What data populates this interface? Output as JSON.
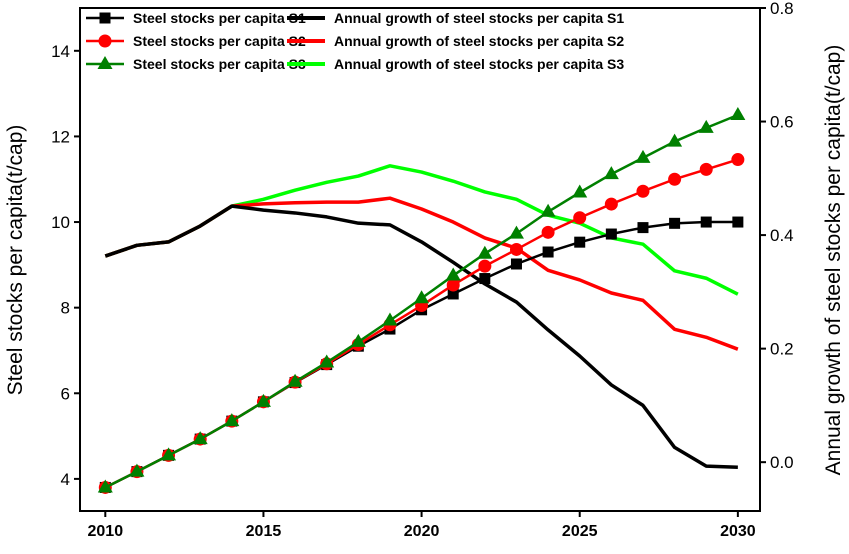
{
  "chart_data": {
    "type": "line",
    "title": "",
    "xlabel": "",
    "ylabel_left": "Steel stocks per capita(t/cap)",
    "ylabel_right": "Annual growth of steel stocks per capita(t/cap)",
    "xlim": [
      2009.2,
      2030.7
    ],
    "ylim_left": [
      3.25,
      15.0
    ],
    "ylim_right": [
      -0.086,
      0.8
    ],
    "x_ticks": [
      2010,
      2015,
      2020,
      2025,
      2030
    ],
    "y_left_ticks": [
      4,
      6,
      8,
      10,
      12,
      14
    ],
    "y_right_ticks": [
      "0.0",
      "0.2",
      "0.4",
      "0.6",
      "0.8"
    ],
    "grid": false,
    "legend_placement": "top",
    "x": [
      2010,
      2011,
      2012,
      2013,
      2014,
      2015,
      2016,
      2017,
      2018,
      2019,
      2020,
      2021,
      2022,
      2023,
      2024,
      2025,
      2026,
      2027,
      2028,
      2029,
      2030
    ],
    "series": [
      {
        "name": "Steel stocks per capita S1",
        "axis": "left",
        "color": "#000000",
        "marker": "square",
        "values": [
          3.8,
          4.17,
          4.55,
          4.93,
          5.35,
          5.8,
          6.25,
          6.67,
          7.1,
          7.5,
          7.95,
          8.32,
          8.68,
          9.02,
          9.3,
          9.53,
          9.72,
          9.87,
          9.97,
          10.0,
          10.0
        ]
      },
      {
        "name": "Steel stocks per capita S2",
        "axis": "left",
        "color": "#ff0000",
        "marker": "circle",
        "values": [
          3.8,
          4.17,
          4.55,
          4.93,
          5.35,
          5.8,
          6.26,
          6.69,
          7.14,
          7.6,
          8.05,
          8.53,
          8.97,
          9.36,
          9.76,
          10.1,
          10.42,
          10.72,
          11.0,
          11.23,
          11.46
        ]
      },
      {
        "name": "Steel stocks per capita S3",
        "axis": "left",
        "color": "#008000",
        "marker": "triangle",
        "values": [
          3.8,
          4.17,
          4.55,
          4.93,
          5.35,
          5.8,
          6.27,
          6.72,
          7.2,
          7.7,
          8.22,
          8.75,
          9.26,
          9.73,
          10.24,
          10.69,
          11.12,
          11.5,
          11.88,
          12.2,
          12.5
        ]
      },
      {
        "name": "Annual growth of steel stocks per capita S1",
        "axis": "right",
        "color": "#000000",
        "marker": "none",
        "values": [
          0.363,
          0.382,
          0.388,
          0.416,
          0.451,
          0.444,
          0.439,
          0.432,
          0.421,
          0.418,
          0.388,
          0.352,
          0.314,
          0.282,
          0.233,
          0.187,
          0.136,
          0.1,
          0.026,
          -0.007,
          -0.009
        ]
      },
      {
        "name": "Annual growth of steel stocks per capita S2",
        "axis": "right",
        "color": "#ff0000",
        "marker": "none",
        "values": [
          0.363,
          0.382,
          0.388,
          0.416,
          0.451,
          0.455,
          0.457,
          0.458,
          0.458,
          0.465,
          0.446,
          0.423,
          0.395,
          0.377,
          0.338,
          0.321,
          0.298,
          0.285,
          0.234,
          0.22,
          0.199
        ]
      },
      {
        "name": "Annual growth of steel stocks per capita S3",
        "axis": "right",
        "color": "#00ff00",
        "marker": "none",
        "values": [
          0.363,
          0.382,
          0.388,
          0.416,
          0.451,
          0.463,
          0.479,
          0.493,
          0.504,
          0.522,
          0.511,
          0.495,
          0.476,
          0.463,
          0.435,
          0.421,
          0.395,
          0.384,
          0.337,
          0.324,
          0.296
        ]
      }
    ]
  }
}
